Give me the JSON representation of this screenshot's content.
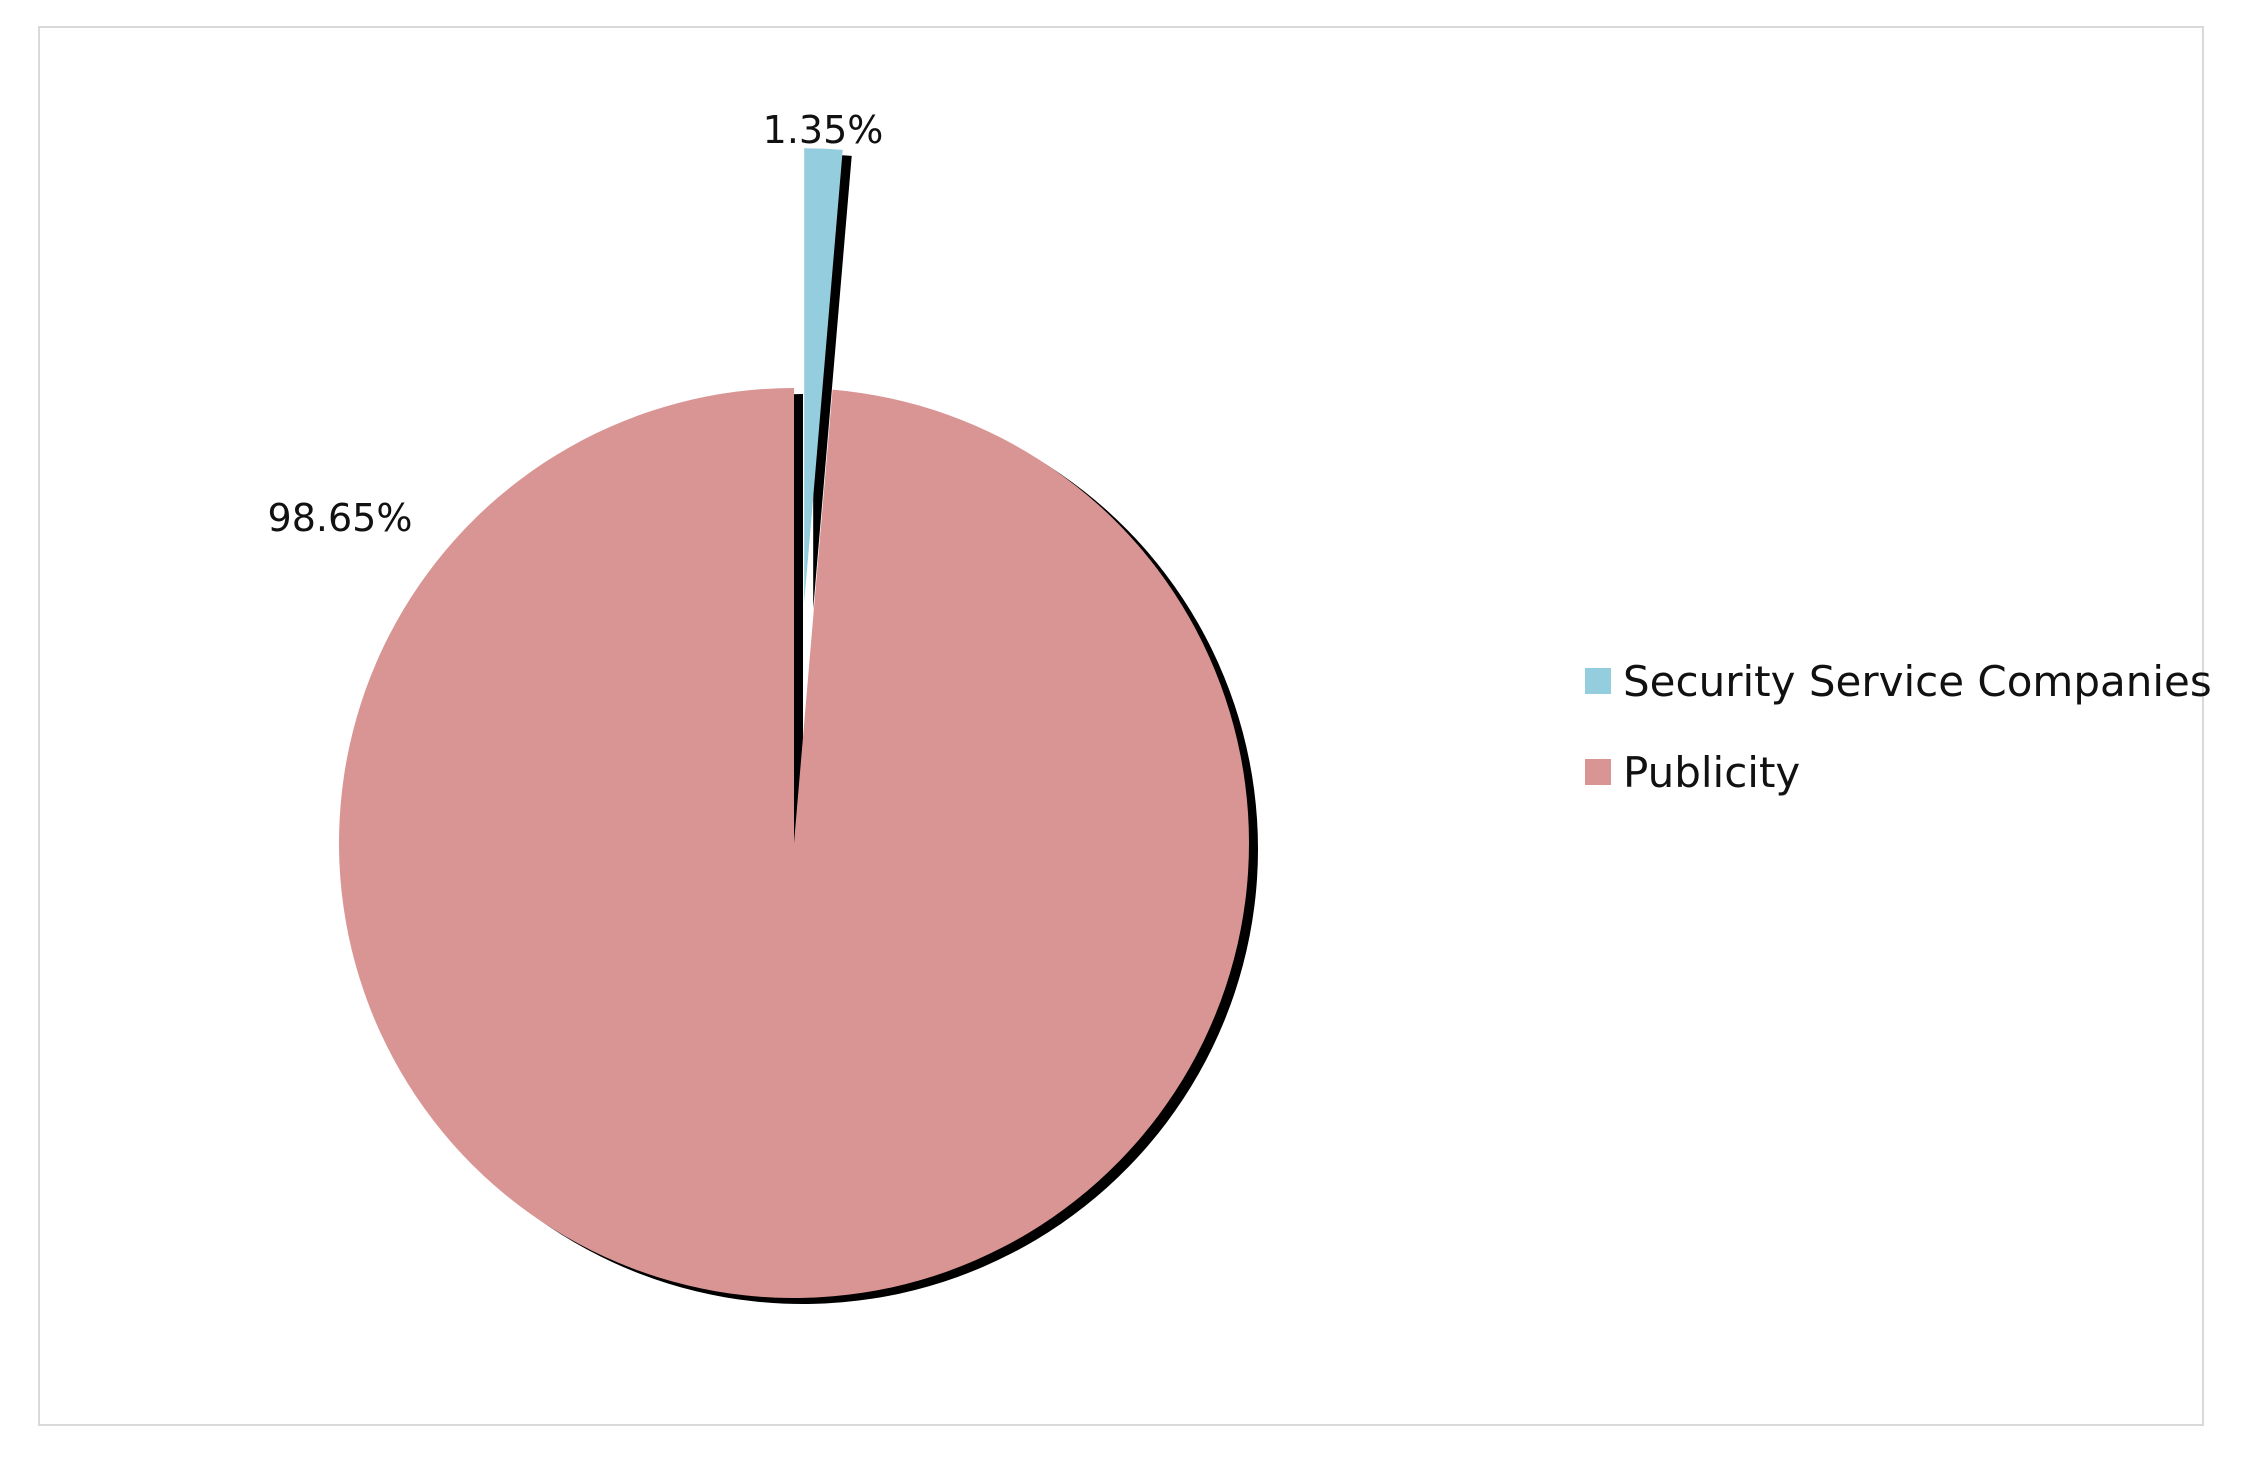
{
  "chart_data": {
    "type": "pie",
    "categories": [
      "Security Service Companies",
      "Publicity"
    ],
    "values": [
      1.35,
      98.65
    ],
    "data_labels": [
      "1.35%",
      "98.65%"
    ],
    "colors": [
      "#94cddd",
      "#d99594"
    ],
    "exploded": [
      true,
      false
    ],
    "start_angle": "12 o'clock",
    "direction": "clockwise",
    "legend_position": "right",
    "shadow": true
  }
}
